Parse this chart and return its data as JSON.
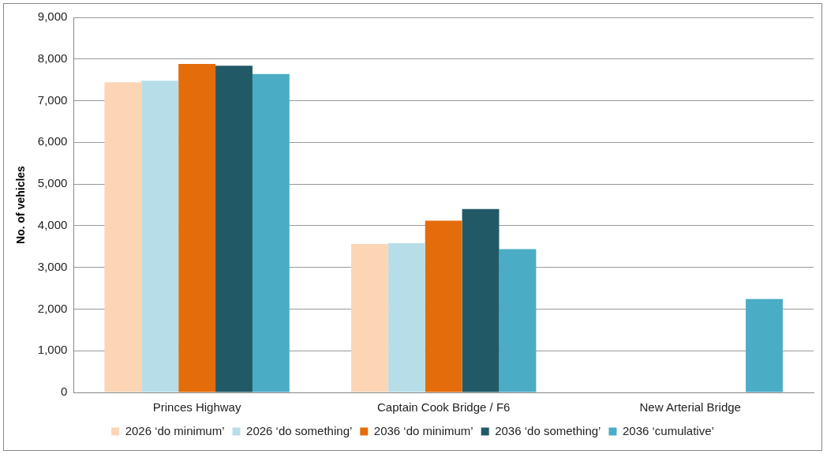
{
  "chart_data": {
    "type": "bar",
    "ylabel": "No. of vehicles",
    "categories": [
      "Princes Highway",
      "Captain Cook Bridge / F6",
      "New Arterial Bridge"
    ],
    "series": [
      {
        "name": "2026 ‘do minimum’",
        "color": "#fcd5b5",
        "values": [
          7440,
          3560,
          null
        ]
      },
      {
        "name": "2026 ‘do something’",
        "color": "#b7dee8",
        "values": [
          7480,
          3580,
          null
        ]
      },
      {
        "name": "2036 ‘do minimum’",
        "color": "#e46c0a",
        "values": [
          7880,
          4120,
          null
        ]
      },
      {
        "name": "2036 ‘do something’",
        "color": "#215967",
        "values": [
          7840,
          4400,
          null
        ]
      },
      {
        "name": "2036 ‘cumulative’",
        "color": "#4bacc6",
        "values": [
          7640,
          3440,
          2240
        ]
      }
    ],
    "ylim": [
      0,
      9000
    ],
    "yticks": [
      0,
      {
        "value": 1000,
        "label": "1,000"
      },
      {
        "value": 2000,
        "label": "2,000"
      },
      {
        "value": 3000,
        "label": "3,000"
      },
      {
        "value": 4000,
        "label": "4,000"
      },
      {
        "value": 5000,
        "label": "5,000"
      },
      {
        "value": 6000,
        "label": "6,000"
      },
      {
        "value": 7000,
        "label": "7,000"
      },
      {
        "value": 8000,
        "label": "8,000"
      },
      {
        "value": 9000,
        "label": "9,000"
      }
    ],
    "grid": "y",
    "legend": "bottom"
  }
}
